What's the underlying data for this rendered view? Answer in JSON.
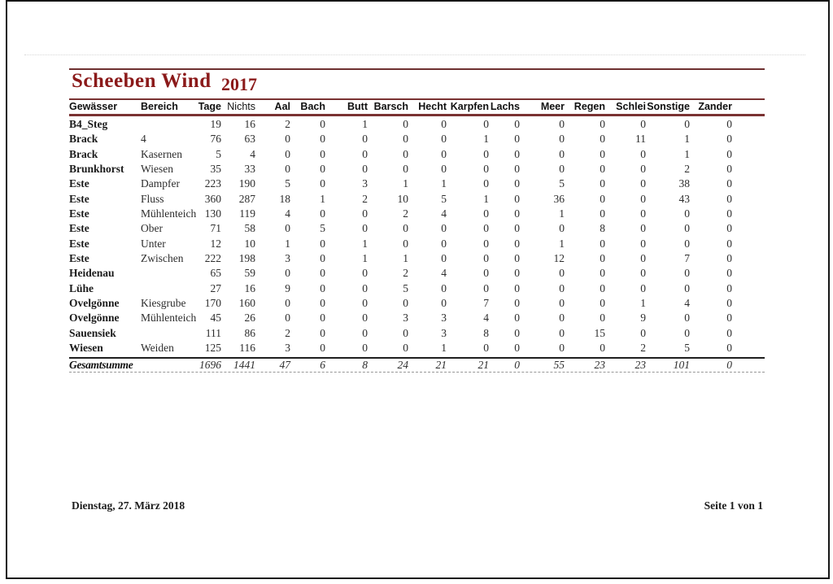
{
  "report": {
    "title": "Scheeben Wind",
    "year": "2017",
    "accent_color": "#8b1a1a",
    "rule_color": "#7a3232",
    "columns": [
      "Gewässer",
      "Bereich",
      "Tage",
      "Nichts",
      "Aal",
      "Bach",
      "Butt",
      "Barsch",
      "Hecht",
      "Karpfen",
      "Lachs",
      "Meer",
      "Regen",
      "Schlei",
      "Sonstige",
      "Zander"
    ],
    "rows": [
      {
        "gewaesser": "B4_Steg",
        "bereich": "",
        "values": [
          19,
          16,
          2,
          0,
          1,
          0,
          0,
          0,
          0,
          0,
          0,
          0,
          0,
          0
        ]
      },
      {
        "gewaesser": "Brack",
        "bereich": "4",
        "values": [
          76,
          63,
          0,
          0,
          0,
          0,
          0,
          1,
          0,
          0,
          0,
          11,
          1,
          0
        ]
      },
      {
        "gewaesser": "Brack",
        "bereich": "Kasernen",
        "values": [
          5,
          4,
          0,
          0,
          0,
          0,
          0,
          0,
          0,
          0,
          0,
          0,
          1,
          0
        ]
      },
      {
        "gewaesser": "Brunkhorst",
        "bereich": "Wiesen",
        "values": [
          35,
          33,
          0,
          0,
          0,
          0,
          0,
          0,
          0,
          0,
          0,
          0,
          2,
          0
        ]
      },
      {
        "gewaesser": "Este",
        "bereich": "Dampfer",
        "values": [
          223,
          190,
          5,
          0,
          3,
          1,
          1,
          0,
          0,
          5,
          0,
          0,
          38,
          0
        ]
      },
      {
        "gewaesser": "Este",
        "bereich": "Fluss",
        "values": [
          360,
          287,
          18,
          1,
          2,
          10,
          5,
          1,
          0,
          36,
          0,
          0,
          43,
          0
        ]
      },
      {
        "gewaesser": "Este",
        "bereich": "Mühlenteich",
        "values": [
          130,
          119,
          4,
          0,
          0,
          2,
          4,
          0,
          0,
          1,
          0,
          0,
          0,
          0
        ]
      },
      {
        "gewaesser": "Este",
        "bereich": "Ober",
        "values": [
          71,
          58,
          0,
          5,
          0,
          0,
          0,
          0,
          0,
          0,
          8,
          0,
          0,
          0
        ]
      },
      {
        "gewaesser": "Este",
        "bereich": "Unter",
        "values": [
          12,
          10,
          1,
          0,
          1,
          0,
          0,
          0,
          0,
          1,
          0,
          0,
          0,
          0
        ]
      },
      {
        "gewaesser": "Este",
        "bereich": "Zwischen",
        "values": [
          222,
          198,
          3,
          0,
          1,
          1,
          0,
          0,
          0,
          12,
          0,
          0,
          7,
          0
        ]
      },
      {
        "gewaesser": "Heidenau",
        "bereich": "",
        "values": [
          65,
          59,
          0,
          0,
          0,
          2,
          4,
          0,
          0,
          0,
          0,
          0,
          0,
          0
        ]
      },
      {
        "gewaesser": "Lühe",
        "bereich": "",
        "values": [
          27,
          16,
          9,
          0,
          0,
          5,
          0,
          0,
          0,
          0,
          0,
          0,
          0,
          0
        ]
      },
      {
        "gewaesser": "Ovelgönne",
        "bereich": "Kiesgrube",
        "values": [
          170,
          160,
          0,
          0,
          0,
          0,
          0,
          7,
          0,
          0,
          0,
          1,
          4,
          0
        ]
      },
      {
        "gewaesser": "Ovelgönne",
        "bereich": "Mühlenteich",
        "values": [
          45,
          26,
          0,
          0,
          0,
          3,
          3,
          4,
          0,
          0,
          0,
          9,
          0,
          0
        ]
      },
      {
        "gewaesser": "Sauensiek",
        "bereich": "",
        "values": [
          111,
          86,
          2,
          0,
          0,
          0,
          3,
          8,
          0,
          0,
          15,
          0,
          0,
          0
        ]
      },
      {
        "gewaesser": "Wiesen",
        "bereich": "Weiden",
        "values": [
          125,
          116,
          3,
          0,
          0,
          0,
          1,
          0,
          0,
          0,
          0,
          2,
          5,
          0
        ]
      }
    ],
    "totals_label": "Gesamtsumme",
    "totals": [
      1696,
      1441,
      47,
      6,
      8,
      24,
      21,
      21,
      0,
      55,
      23,
      23,
      101,
      0
    ],
    "footer": {
      "date": "Dienstag, 27. März 2018",
      "page": "Seite 1 von 1"
    }
  }
}
